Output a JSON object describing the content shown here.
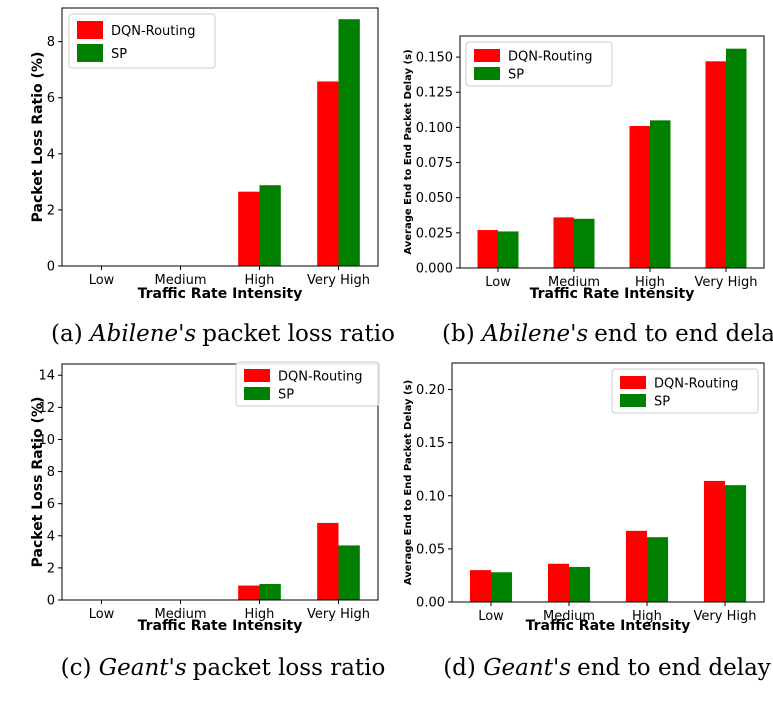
{
  "colors": {
    "dqn": "#ff0000",
    "sp": "#008000",
    "axis": "#000000"
  },
  "chart_data": [
    {
      "id": "a",
      "type": "bar",
      "categories": [
        "Low",
        "Medium",
        "High",
        "Very High"
      ],
      "series": [
        {
          "name": "DQN-Routing",
          "values": [
            0,
            0,
            2.65,
            6.58
          ]
        },
        {
          "name": "SP",
          "values": [
            0,
            0,
            2.88,
            8.8
          ]
        }
      ],
      "xlabel": "Traffic Rate Intensity",
      "ylabel": "Packet Loss Ratio (%)",
      "ylim": [
        0,
        9.2
      ],
      "yticks": [
        "0",
        "2",
        "4",
        "6",
        "8"
      ],
      "legend": "top-left",
      "caption": {
        "label": "(a)",
        "name": "Abilene's",
        "rest": "packet loss ratio"
      }
    },
    {
      "id": "b",
      "type": "bar",
      "categories": [
        "Low",
        "Medium",
        "High",
        "Very High"
      ],
      "series": [
        {
          "name": "DQN-Routing",
          "values": [
            0.027,
            0.036,
            0.101,
            0.147
          ]
        },
        {
          "name": "SP",
          "values": [
            0.026,
            0.035,
            0.105,
            0.156
          ]
        }
      ],
      "xlabel": "Traffic Rate Intensity",
      "ylabel": "Average End to End Packet Delay (s)",
      "ylim": [
        0,
        0.165
      ],
      "yticks": [
        "0.000",
        "0.025",
        "0.050",
        "0.075",
        "0.100",
        "0.125",
        "0.150"
      ],
      "legend": "top-left",
      "caption": {
        "label": "(b)",
        "name": "Abilene's",
        "rest": "end to end delay"
      }
    },
    {
      "id": "c",
      "type": "bar",
      "categories": [
        "Low",
        "Medium",
        "High",
        "Very High"
      ],
      "series": [
        {
          "name": "DQN-Routing",
          "values": [
            0,
            0,
            0.9,
            4.8
          ]
        },
        {
          "name": "SP",
          "values": [
            0,
            0,
            1.0,
            3.4
          ]
        }
      ],
      "xlabel": "Traffic Rate Intensity",
      "ylabel": "Packet Loss Ratio (%)",
      "ylim": [
        0,
        14.7
      ],
      "yticks": [
        "0",
        "2",
        "4",
        "6",
        "8",
        "10",
        "12",
        "14"
      ],
      "legend": "top-right",
      "caption": {
        "label": "(c)",
        "name": "Geant's",
        "rest": "packet loss ratio"
      }
    },
    {
      "id": "d",
      "type": "bar",
      "categories": [
        "Low",
        "Medium",
        "High",
        "Very High"
      ],
      "series": [
        {
          "name": "DQN-Routing",
          "values": [
            0.03,
            0.036,
            0.067,
            0.114
          ]
        },
        {
          "name": "SP",
          "values": [
            0.028,
            0.033,
            0.061,
            0.11
          ]
        }
      ],
      "xlabel": "Traffic Rate Intensity",
      "ylabel": "Average End to End Packet Delay (s)",
      "ylim": [
        0,
        0.225
      ],
      "yticks": [
        "0.00",
        "0.05",
        "0.10",
        "0.15",
        "0.20"
      ],
      "legend": "top-right",
      "caption": {
        "label": "(d)",
        "name": "Geant's",
        "rest": "end to end delay"
      }
    }
  ]
}
